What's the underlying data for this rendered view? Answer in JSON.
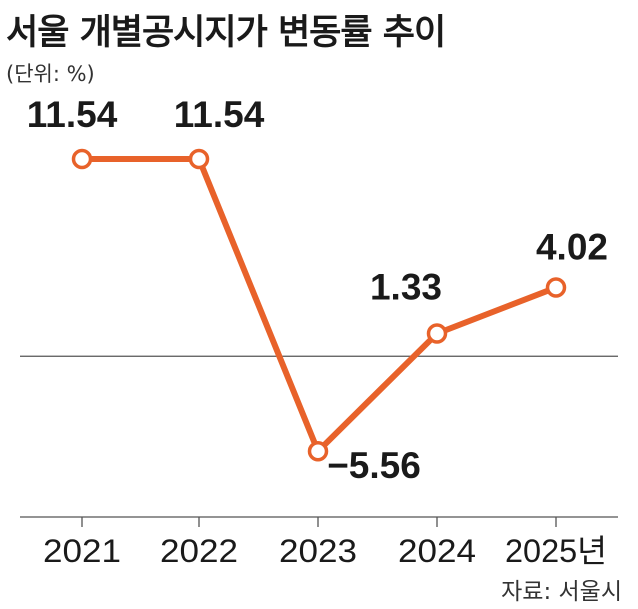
{
  "title": "서울 개별공시지가 변동률 추이",
  "unit_label": "(단위: %)",
  "source": "자료: 서울시",
  "colors": {
    "line": "#e8622a",
    "marker_fill": "#ffffff",
    "baseline": "#555555",
    "text": "#1a1a1a"
  },
  "chart_data": {
    "type": "line",
    "title": "서울 개별공시지가 변동률 추이",
    "ylabel": "(단위: %)",
    "categories": [
      "2021",
      "2022",
      "2023",
      "2024",
      "2025년"
    ],
    "series": [
      {
        "values": [
          11.54,
          11.54,
          -5.56,
          1.33,
          4.02
        ]
      }
    ],
    "data_labels": [
      "11.54",
      "11.54",
      "−5.56",
      "1.33",
      "4.02"
    ],
    "ylim": [
      -9,
      14
    ],
    "zero_line": true,
    "grid": false,
    "legend": "none"
  }
}
